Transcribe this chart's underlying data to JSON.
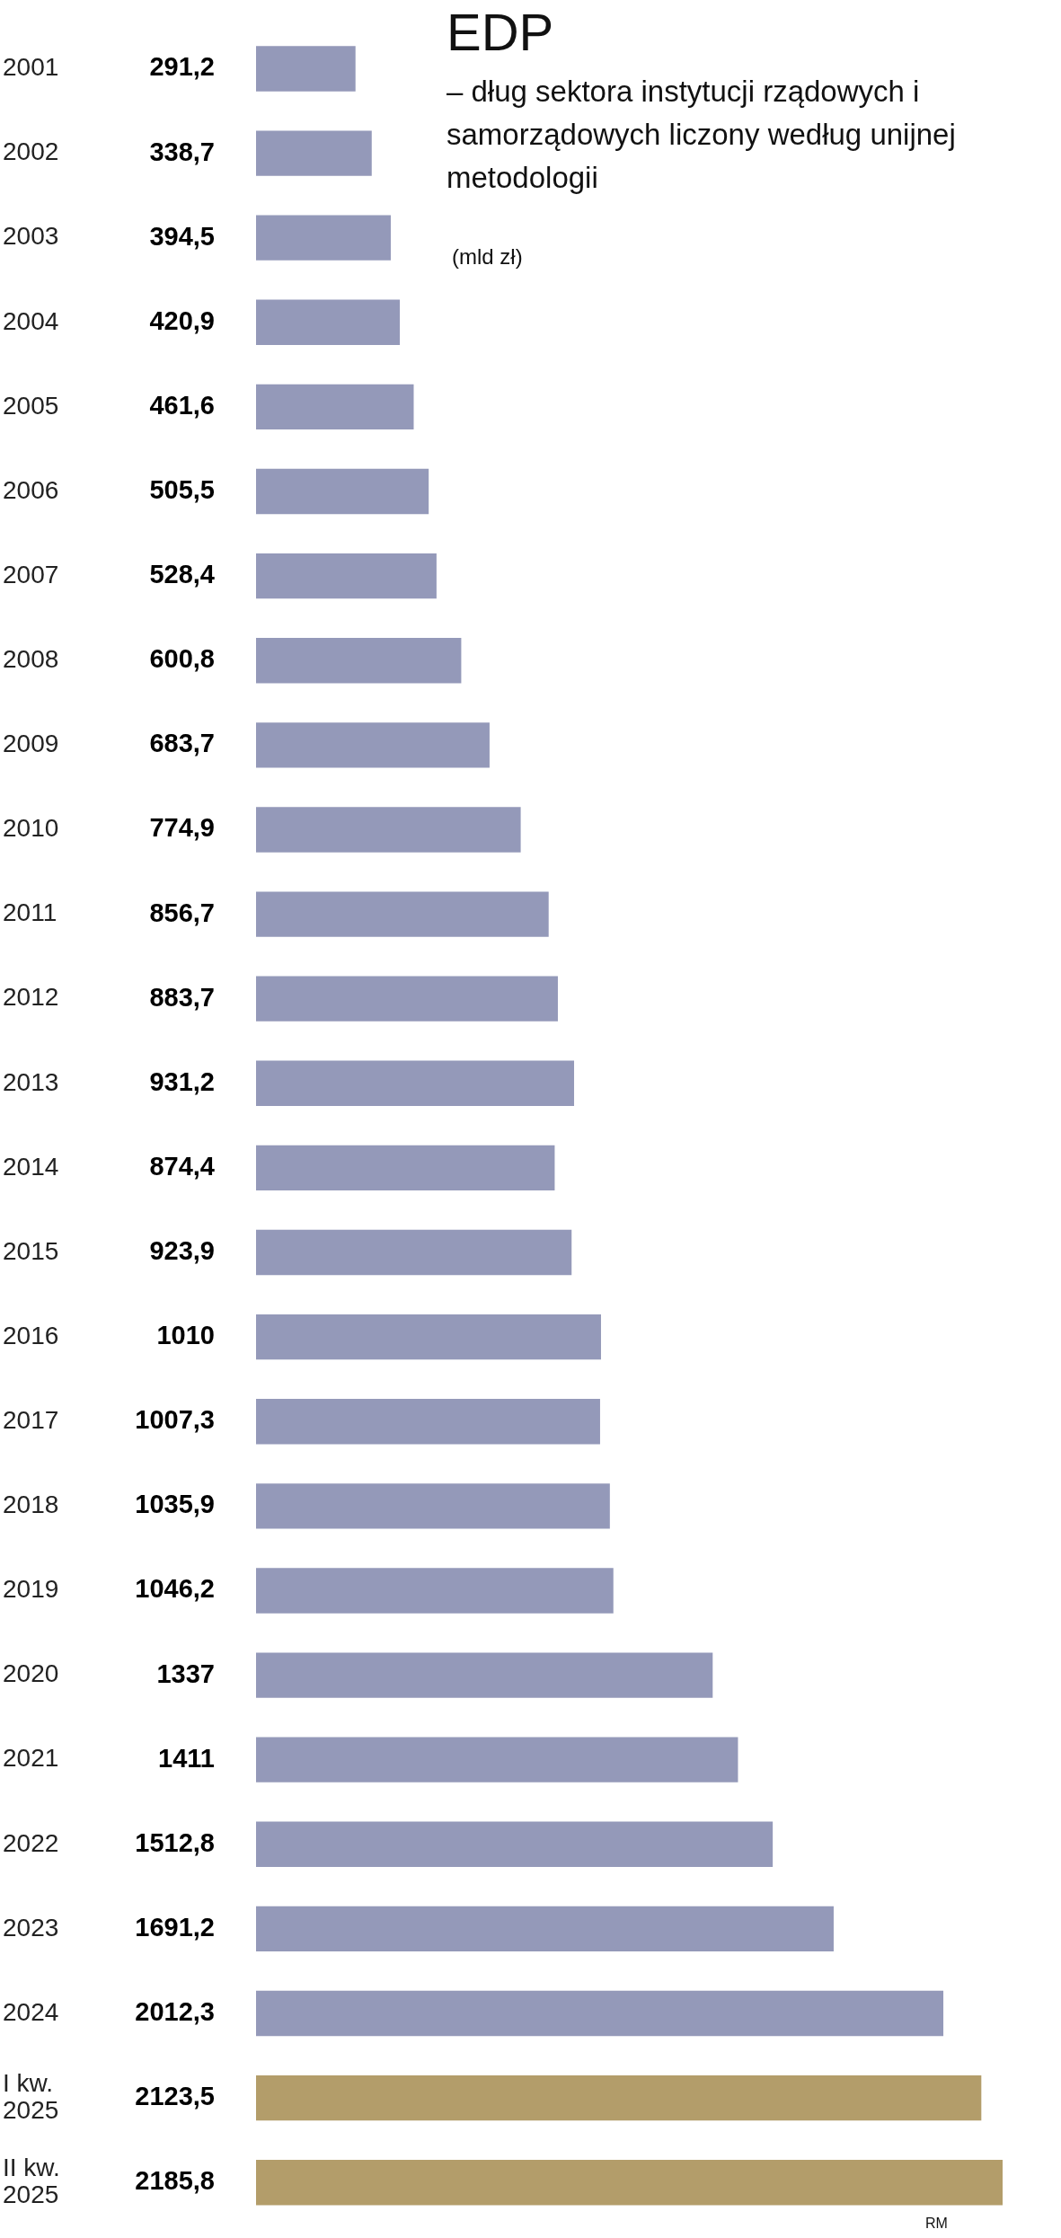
{
  "chart_data": {
    "type": "bar",
    "orientation": "horizontal",
    "title": "EDP",
    "subtitle": "– dług sektora instytucji rządowych i samorządowych liczony według unijnej metodologii",
    "annotations": [
      "(mld zł)",
      "RM"
    ],
    "categories": [
      "2001",
      "2002",
      "2003",
      "2004",
      "2005",
      "2006",
      "2007",
      "2008",
      "2009",
      "2010",
      "2011",
      "2012",
      "2013",
      "2014",
      "2015",
      "2016",
      "2017",
      "2018",
      "2019",
      "2020",
      "2021",
      "2022",
      "2023",
      "2024",
      "I kw.\n2025",
      "II kw.\n2025"
    ],
    "values": [
      291.2,
      338.7,
      394.5,
      420.9,
      461.6,
      505.5,
      528.4,
      600.8,
      683.7,
      774.9,
      856.7,
      883.7,
      931.2,
      874.4,
      923.9,
      1010,
      1007.3,
      1035.9,
      1046.2,
      1337,
      1411,
      1512.8,
      1691.2,
      2012.3,
      2123.5,
      2185.8
    ],
    "value_labels": [
      "291,2",
      "338,7",
      "394,5",
      "420,9",
      "461,6",
      "505,5",
      "528,4",
      "600,8",
      "683,7",
      "774,9",
      "856,7",
      "883,7",
      "931,2",
      "874,4",
      "923,9",
      "1010",
      "1007,3",
      "1035,9",
      "1046,2",
      "1337",
      "1411",
      "1512,8",
      "1691,2",
      "2012,3",
      "2123,5",
      "2185,8"
    ],
    "colors": [
      "#9499b9",
      "#9499b9",
      "#9499b9",
      "#9499b9",
      "#9499b9",
      "#9499b9",
      "#9499b9",
      "#9499b9",
      "#9499b9",
      "#9499b9",
      "#9499b9",
      "#9499b9",
      "#9499b9",
      "#9499b9",
      "#9499b9",
      "#9499b9",
      "#9499b9",
      "#9499b9",
      "#9499b9",
      "#9499b9",
      "#9499b9",
      "#9499b9",
      "#9499b9",
      "#9499b9",
      "#b39d6a",
      "#b39d6a"
    ],
    "tick_labels": "y",
    "legend": false
  }
}
